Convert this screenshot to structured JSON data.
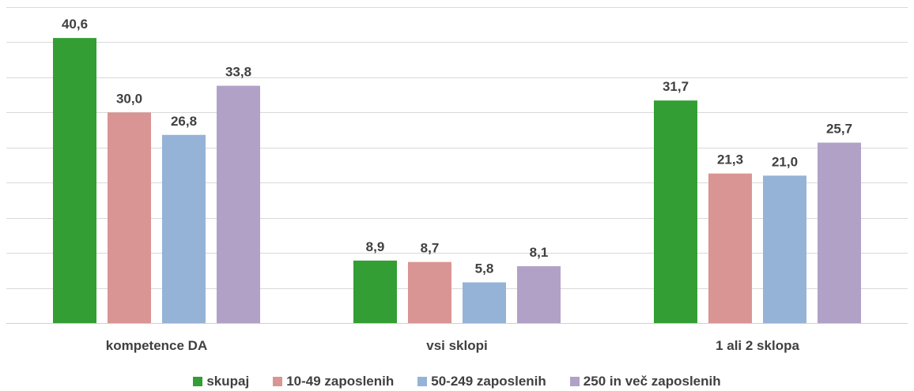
{
  "chart_data": {
    "type": "bar",
    "categories": [
      "kompetence DA",
      "vsi sklopi",
      "1 ali 2 sklopa"
    ],
    "series": [
      {
        "name": "skupaj",
        "values": [
          40.6,
          8.9,
          31.7
        ],
        "labels": [
          "40,6",
          "8,9",
          "31,7"
        ],
        "color": "#339e33"
      },
      {
        "name": "10-49 zaposlenih",
        "values": [
          30.0,
          8.7,
          21.3
        ],
        "labels": [
          "30,0",
          "8,7",
          "21,3"
        ],
        "color": "#d99593"
      },
      {
        "name": "50-249 zaposlenih",
        "values": [
          26.8,
          5.8,
          21.0
        ],
        "labels": [
          "26,8",
          "5,8",
          "21,0"
        ],
        "color": "#95b3d7"
      },
      {
        "name": "250 in več zaposlenih",
        "values": [
          33.8,
          8.1,
          25.7
        ],
        "labels": [
          "33,8",
          "8,1",
          "25,7"
        ],
        "color": "#b2a1c7"
      }
    ],
    "ylim": [
      0,
      45
    ],
    "grid": true,
    "legend": "bottom-center"
  }
}
